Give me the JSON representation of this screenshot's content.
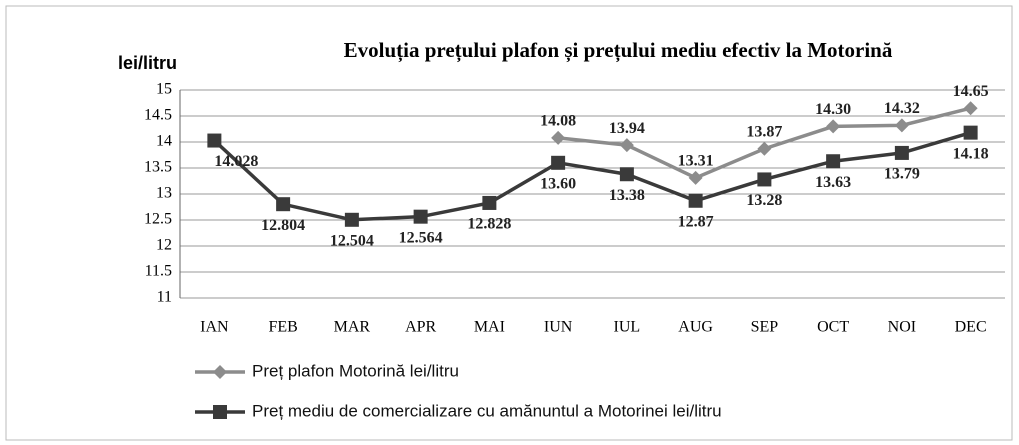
{
  "chart_data": {
    "type": "line",
    "title": "Evoluția prețului plafon și prețului mediu efectiv la Motorină",
    "y_label": "lei/litru",
    "categories": [
      "IAN",
      "FEB",
      "MAR",
      "APR",
      "MAI",
      "IUN",
      "IUL",
      "AUG",
      "SEP",
      "OCT",
      "NOI",
      "DEC"
    ],
    "series": [
      {
        "name": "Preț plafon Motorină lei/litru",
        "color": "#8c8c8c",
        "marker": "diamond",
        "values": [
          null,
          null,
          null,
          null,
          null,
          14.08,
          13.94,
          13.31,
          13.87,
          14.3,
          14.32,
          14.65
        ],
        "value_labels": [
          null,
          null,
          null,
          null,
          null,
          "14.08",
          "13.94",
          "13.31",
          "13.87",
          "14.30",
          "14.32",
          "14.65"
        ]
      },
      {
        "name": "Preț mediu de comercializare cu amănuntul a Motorinei lei/litru",
        "color": "#3a3a3a",
        "marker": "square",
        "values": [
          14.028,
          12.804,
          12.504,
          12.564,
          12.828,
          13.6,
          13.38,
          12.87,
          13.28,
          13.63,
          13.79,
          14.18
        ],
        "value_labels": [
          "14.028",
          "12.804",
          "12.504",
          "12.564",
          "12.828",
          "13.60",
          "13.38",
          "12.87",
          "13.28",
          "13.63",
          "13.79",
          "14.18"
        ]
      }
    ],
    "ylim": [
      11,
      15
    ],
    "yticks": [
      11,
      11.5,
      12,
      12.5,
      13,
      13.5,
      14,
      14.5,
      15
    ],
    "grid": true,
    "legend": "bottom-left"
  }
}
